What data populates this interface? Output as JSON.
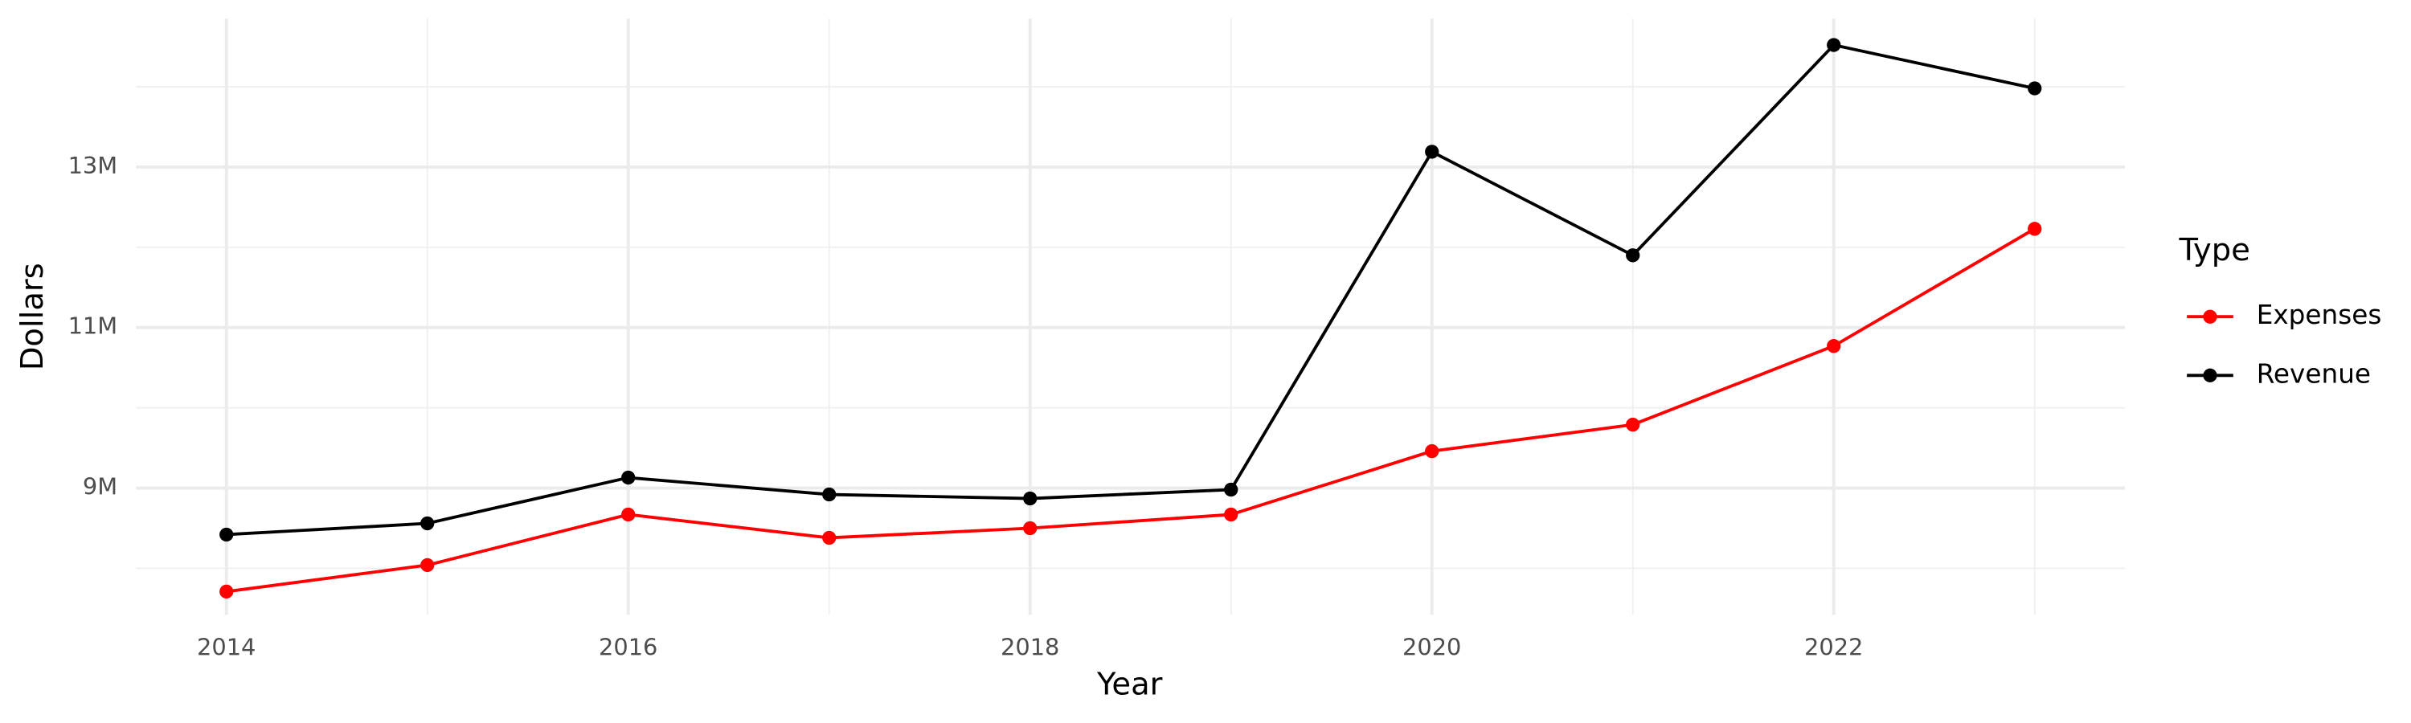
{
  "chart_data": {
    "type": "line",
    "x_label": "Year",
    "y_label": "Dollars",
    "x": [
      2014,
      2015,
      2016,
      2017,
      2018,
      2019,
      2020,
      2021,
      2022,
      2023
    ],
    "series": [
      {
        "name": "Expenses",
        "color": "#ff0000",
        "values": [
          7710000,
          8040000,
          8670000,
          8380000,
          8500000,
          8670000,
          9460000,
          9790000,
          10770000,
          12230000
        ]
      },
      {
        "name": "Revenue",
        "color": "#000000",
        "values": [
          8420000,
          8560000,
          9130000,
          8920000,
          8870000,
          8980000,
          13190000,
          11900000,
          14520000,
          13980000
        ]
      }
    ],
    "xlim": [
      2013.55,
      2023.45
    ],
    "xticks": [
      2014,
      2016,
      2018,
      2020,
      2022
    ],
    "xminorticks": [
      2015,
      2017,
      2019,
      2021,
      2023
    ],
    "ylim": [
      7420000,
      14850000
    ],
    "yticks": [
      {
        "value": 9000000,
        "label": "9M"
      },
      {
        "value": 11000000,
        "label": "11M"
      },
      {
        "value": 13000000,
        "label": "13M"
      }
    ],
    "yminorticks": [
      8000000,
      10000000,
      12000000,
      14000000
    ],
    "grid": true,
    "legend_title": "Type",
    "legend_position": "right"
  }
}
